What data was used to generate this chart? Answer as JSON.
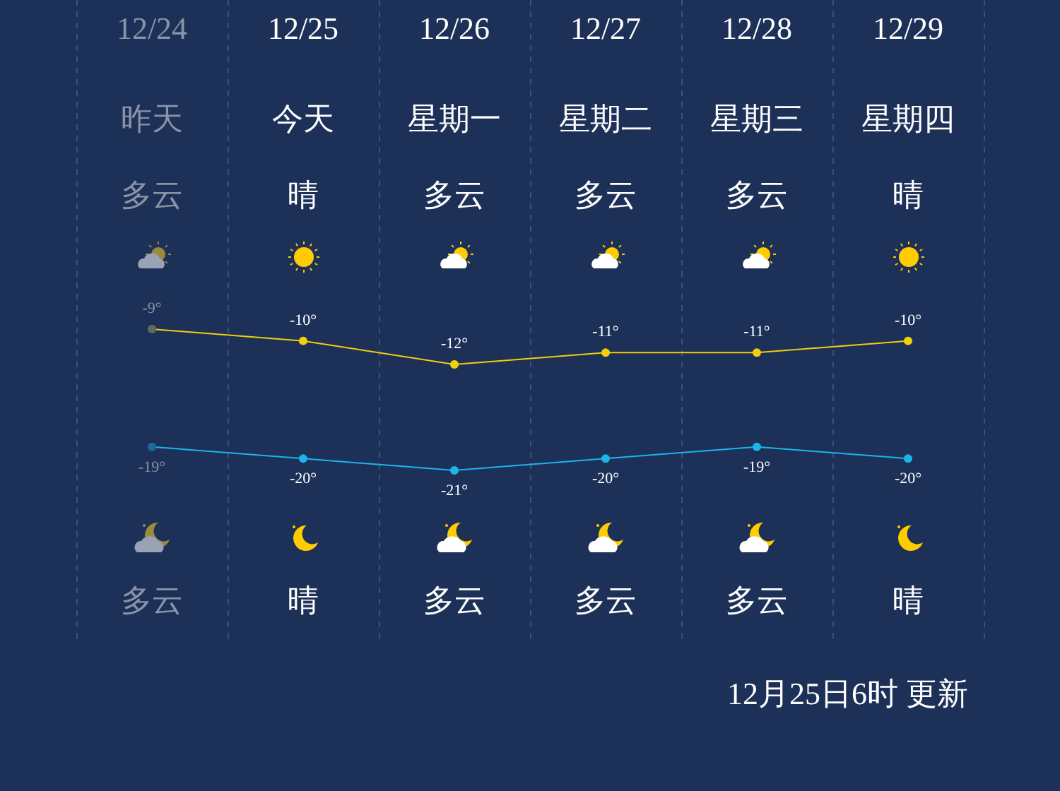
{
  "chart_data": {
    "type": "line",
    "categories": [
      "12/24",
      "12/25",
      "12/26",
      "12/27",
      "12/28",
      "12/29"
    ],
    "series": [
      {
        "color": "#f2cf0c",
        "colors": [
          "#5f6c5b",
          "#f2cf0c",
          "#f2cf0c",
          "#f2cf0c",
          "#f2cf0c",
          "#f2cf0c"
        ],
        "values": [
          -9,
          -10,
          -12,
          -11,
          -11,
          -10
        ],
        "value_labels": [
          "-9°",
          "-10°",
          "-12°",
          "-11°",
          "-11°",
          "-10°"
        ]
      },
      {
        "color": "#1db4ea",
        "colors": [
          "#1f6a9a",
          "#1db4ea",
          "#1db4ea",
          "#1db4ea",
          "#1db4ea",
          "#1db4ea"
        ],
        "values": [
          -19,
          -20,
          -21,
          -20,
          -19,
          -20
        ],
        "value_labels": [
          "-19°",
          "-20°",
          "-21°",
          "-20°",
          "-19°",
          "-20°"
        ]
      }
    ],
    "grid": "x",
    "marker": "circle",
    "line_style": "solid",
    "tick_labels": "x",
    "annotations": [
      "昨天",
      "今天",
      "星期一",
      "星期二",
      "星期三",
      "星期四",
      "多云",
      "晴",
      "多云",
      "多云",
      "多云",
      "晴",
      "多云",
      "晴",
      "多云",
      "多云",
      "多云",
      "晴",
      "12月25日6时 更新"
    ]
  }
}
